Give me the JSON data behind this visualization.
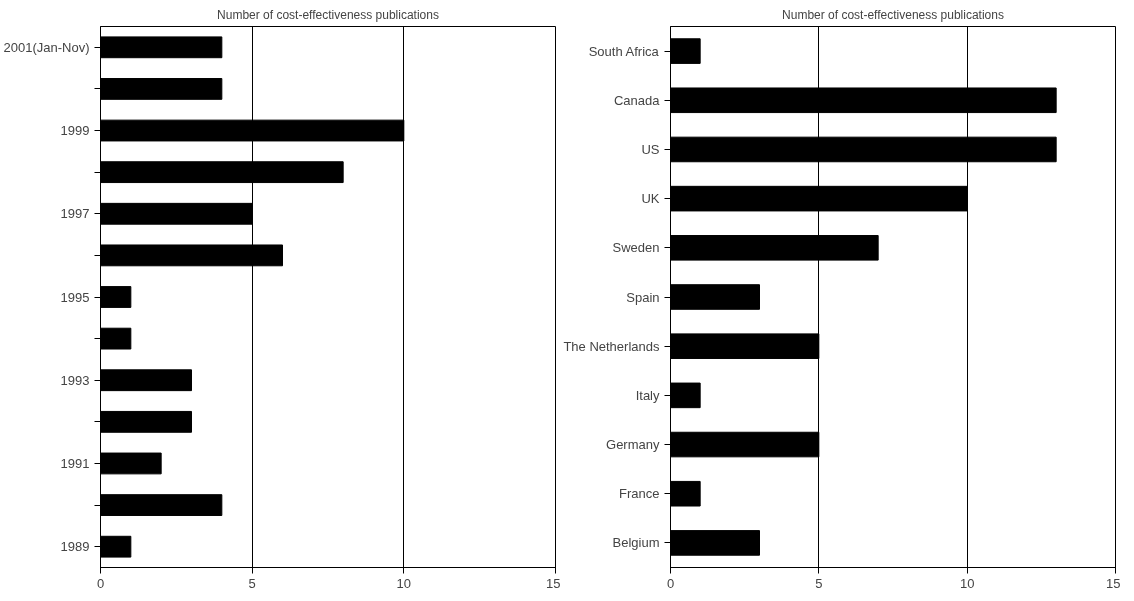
{
  "chart_data": [
    {
      "type": "bar",
      "orientation": "horizontal",
      "title": "Number of cost-effectiveness publications",
      "categories": [
        "2001(Jan-Nov)",
        null,
        "1999",
        null,
        "1997",
        null,
        "1995",
        null,
        "1993",
        null,
        "1991",
        null,
        "1989"
      ],
      "values": [
        4,
        4,
        10,
        8,
        5,
        6,
        1,
        1,
        3,
        3,
        2,
        4,
        1
      ],
      "color": "#000000",
      "xlim": [
        0,
        15
      ],
      "xticks": [
        0,
        5,
        10,
        15
      ],
      "grid": "x"
    },
    {
      "type": "bar",
      "orientation": "horizontal",
      "title": "Number of cost-effectiveness publications",
      "categories": [
        "South Africa",
        "Canada",
        "US",
        "UK",
        "Sweden",
        "Spain",
        "The Netherlands",
        "Italy",
        "Germany",
        "France",
        "Belgium"
      ],
      "values": [
        1,
        13,
        13,
        10,
        7,
        3,
        5,
        1,
        5,
        1,
        3
      ],
      "color": "#000000",
      "xlim": [
        0,
        15
      ],
      "xticks": [
        0,
        5,
        10,
        15
      ],
      "grid": "x"
    }
  ]
}
